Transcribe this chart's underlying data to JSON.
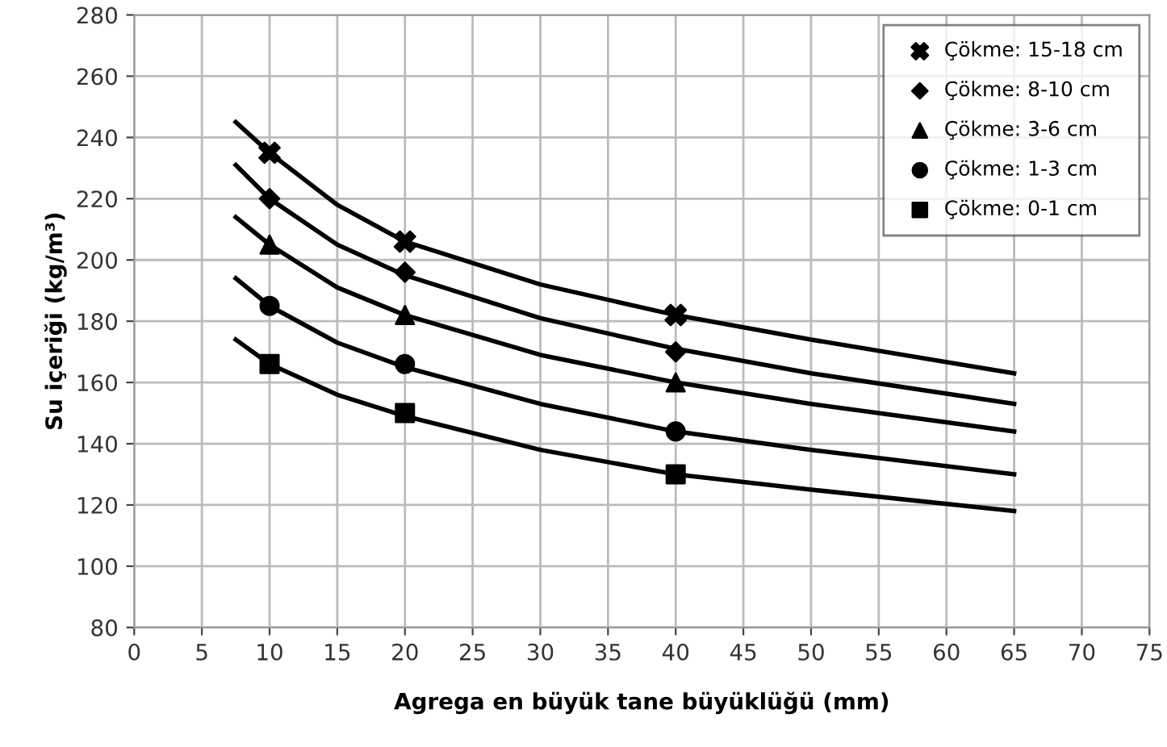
{
  "chart_data": {
    "type": "scatter",
    "xlabel": "Agrega en büyük tane büyüklüğü (mm)",
    "ylabel": "Su içeriği (kg/m³)",
    "xlim": [
      0,
      75
    ],
    "xticks": [
      0,
      5,
      10,
      15,
      20,
      25,
      30,
      35,
      40,
      45,
      50,
      55,
      60,
      65,
      70,
      75
    ],
    "ylim": [
      80,
      280
    ],
    "yticks": [
      80,
      100,
      120,
      140,
      160,
      180,
      200,
      220,
      240,
      260,
      280
    ],
    "grid": true,
    "legend": "top right",
    "series": [
      {
        "name": "Çökme: 15-18 cm",
        "marker": "cross",
        "color": "#000000",
        "x": [
          10,
          20,
          40
        ],
        "values": [
          235,
          206,
          182
        ]
      },
      {
        "name": "Çökme: 8-10 cm",
        "marker": "diamond",
        "color": "#000000",
        "x": [
          10,
          20,
          40
        ],
        "values": [
          220,
          196,
          170
        ]
      },
      {
        "name": "Çökme: 3-6 cm",
        "marker": "triangle",
        "color": "#000000",
        "x": [
          10,
          20,
          40
        ],
        "values": [
          205,
          182,
          160
        ]
      },
      {
        "name": "Çökme: 1-3 cm",
        "marker": "circle",
        "color": "#000000",
        "x": [
          10,
          20,
          40
        ],
        "values": [
          185,
          166,
          144
        ]
      },
      {
        "name": "Çökme: 0-1 cm",
        "marker": "square",
        "color": "#000000",
        "x": [
          10,
          20,
          40
        ],
        "values": [
          166,
          150,
          130
        ]
      },
      {
        "type": "line",
        "color": "#000000",
        "x": [
          7.5,
          10,
          15,
          20,
          30,
          40,
          50,
          65
        ],
        "values": [
          245,
          235,
          218,
          206,
          192,
          182,
          174,
          163
        ]
      },
      {
        "type": "line",
        "color": "#000000",
        "x": [
          7.5,
          10,
          15,
          20,
          30,
          40,
          50,
          65
        ],
        "values": [
          231,
          220,
          205,
          195,
          181,
          171,
          163,
          153
        ]
      },
      {
        "type": "line",
        "color": "#000000",
        "x": [
          7.5,
          10,
          15,
          20,
          30,
          40,
          50,
          65
        ],
        "values": [
          214,
          205,
          191,
          182,
          169,
          160,
          153,
          144
        ]
      },
      {
        "type": "line",
        "color": "#000000",
        "x": [
          7.5,
          10,
          15,
          20,
          30,
          40,
          50,
          65
        ],
        "values": [
          194,
          185,
          173,
          165,
          153,
          144,
          138,
          130
        ]
      },
      {
        "type": "line",
        "color": "#000000",
        "x": [
          7.5,
          10,
          15,
          20,
          30,
          40,
          50,
          65
        ],
        "values": [
          174,
          166,
          156,
          149,
          138,
          130,
          125,
          118
        ]
      }
    ]
  }
}
